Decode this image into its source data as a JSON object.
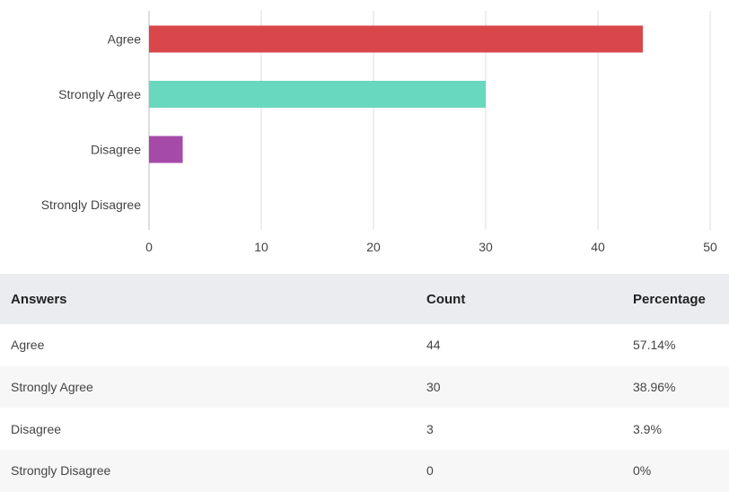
{
  "chart_data": {
    "type": "bar",
    "orientation": "horizontal",
    "categories": [
      "Agree",
      "Strongly Agree",
      "Disagree",
      "Strongly Disagree"
    ],
    "values": [
      44,
      30,
      3,
      0
    ],
    "colors": [
      "#d9474b",
      "#68d8be",
      "#a64aa8",
      "#cccccc"
    ],
    "xlim": [
      0,
      50
    ],
    "xticks": [
      0,
      10,
      20,
      30,
      40,
      50
    ],
    "grid": true,
    "title": "",
    "xlabel": "",
    "ylabel": ""
  },
  "table": {
    "headers": {
      "answer": "Answers",
      "count": "Count",
      "percentage": "Percentage"
    },
    "rows": [
      {
        "answer": "Agree",
        "count": "44",
        "percentage": "57.14%"
      },
      {
        "answer": "Strongly Agree",
        "count": "30",
        "percentage": "38.96%"
      },
      {
        "answer": "Disagree",
        "count": "3",
        "percentage": "3.9%"
      },
      {
        "answer": "Strongly Disagree",
        "count": "0",
        "percentage": "0%"
      }
    ]
  },
  "colors": {
    "header_bg": "#ebecf0",
    "row_alt_bg": "#f7f7f8",
    "grid": "#dddddd",
    "axis": "#bbbbbb"
  }
}
